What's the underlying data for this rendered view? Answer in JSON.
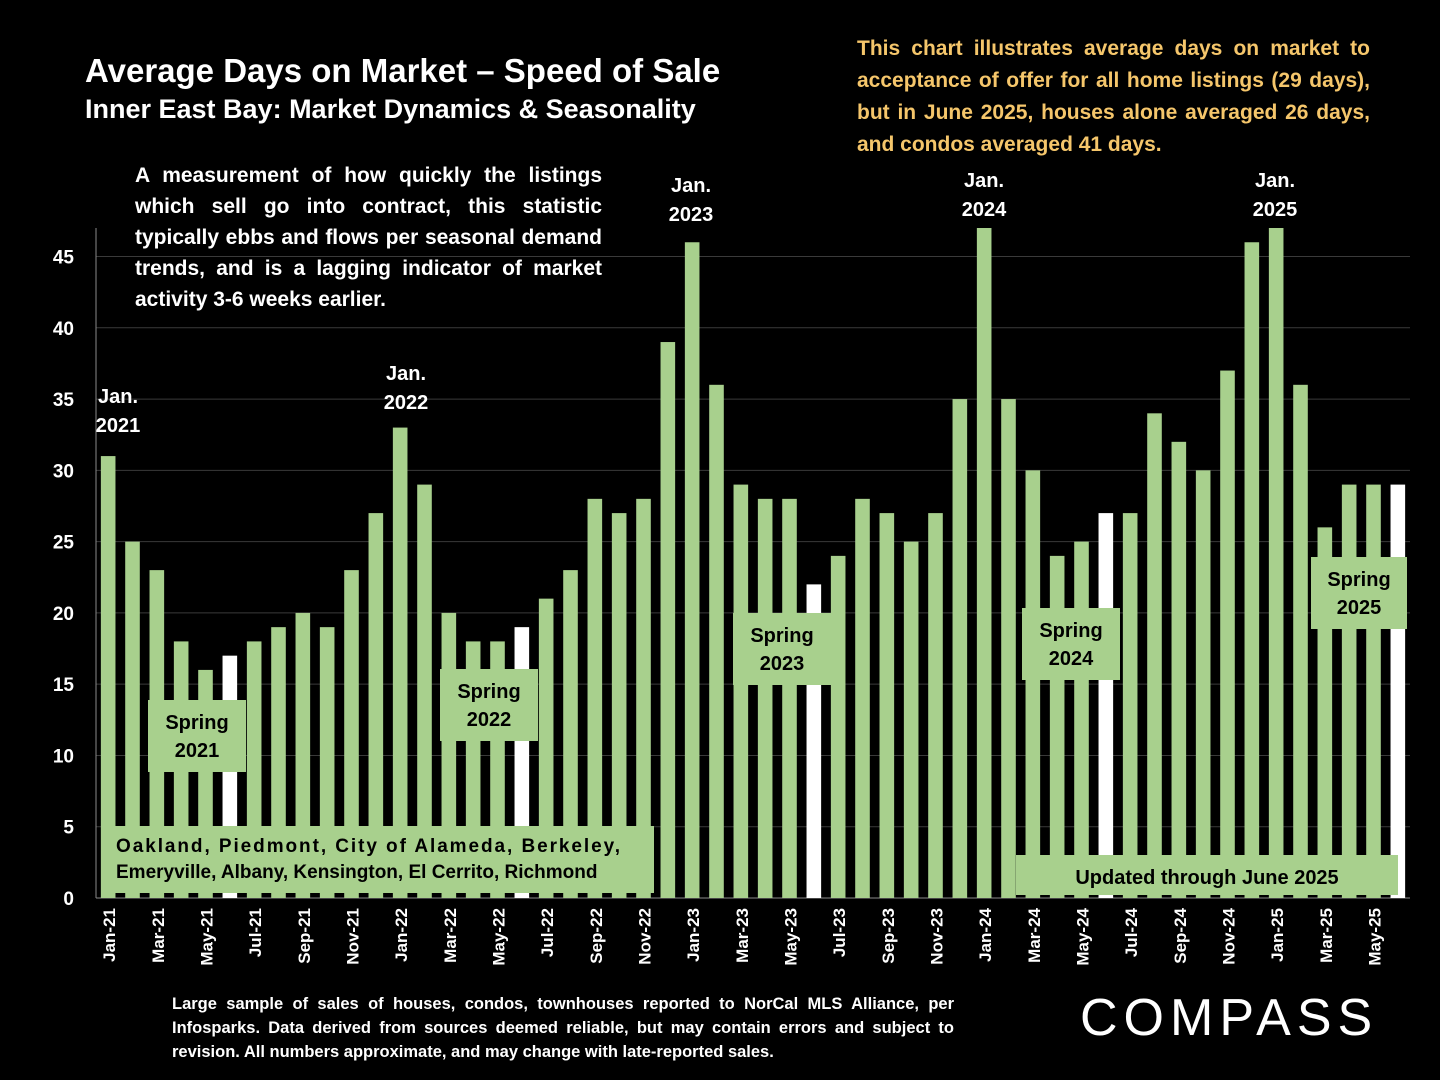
{
  "header": {
    "title": "Average Days on Market – Speed of Sale",
    "subtitle": "Inner East Bay: Market Dynamics & Seasonality"
  },
  "note": "This chart illustrates average days on market to acceptance of offer for all home listings (29 days), but in June 2025, houses alone averaged 26 days, and condos averaged 41 days.",
  "description": "A measurement of how quickly the listings which sell go into contract, this statistic typically ebbs and flows per seasonal demand trends, and is a lagging indicator of market activity 3-6 weeks earlier.",
  "footnote": "Large sample of sales of houses, condos, townhouses reported to NorCal MLS Alliance, per Infosparks. Data derived from sources deemed reliable, but may contain errors and subject to revision. All numbers approximate, and may change with late-reported sales.",
  "brand": "COMPASS",
  "colors": {
    "background": "#000000",
    "bar": "#A8D08D",
    "highlight_bar": "#FFFFFF",
    "note_text": "#F5C66B",
    "label_box": "#A8D08D",
    "text": "#FFFFFF",
    "dark_text": "#000000"
  },
  "chart_data": {
    "type": "bar",
    "categories": [
      "Jan-21",
      "Feb-21",
      "Mar-21",
      "Apr-21",
      "May-21",
      "Jun-21",
      "Jul-21",
      "Aug-21",
      "Sep-21",
      "Oct-21",
      "Nov-21",
      "Dec-21",
      "Jan-22",
      "Feb-22",
      "Mar-22",
      "Apr-22",
      "May-22",
      "Jun-22",
      "Jul-22",
      "Aug-22",
      "Sep-22",
      "Oct-22",
      "Nov-22",
      "Dec-22",
      "Jan-23",
      "Feb-23",
      "Mar-23",
      "Apr-23",
      "May-23",
      "Jun-23",
      "Jul-23",
      "Aug-23",
      "Sep-23",
      "Oct-23",
      "Nov-23",
      "Dec-23",
      "Jan-24",
      "Feb-24",
      "Mar-24",
      "Apr-24",
      "May-24",
      "Jun-24",
      "Jul-24",
      "Aug-24",
      "Sep-24",
      "Oct-24",
      "Nov-24",
      "Dec-24",
      "Jan-25",
      "Feb-25",
      "Mar-25",
      "Apr-25",
      "May-25",
      "Jun-25"
    ],
    "tick_labels": [
      "Jan-21",
      "Mar-21",
      "May-21",
      "Jul-21",
      "Sep-21",
      "Nov-21",
      "Jan-22",
      "Mar-22",
      "May-22",
      "Jul-22",
      "Sep-22",
      "Nov-22",
      "Jan-23",
      "Mar-23",
      "May-23",
      "Jul-23",
      "Sep-23",
      "Nov-23",
      "Jan-24",
      "Mar-24",
      "May-24",
      "Jul-24",
      "Sep-24",
      "Nov-24",
      "Jan-25",
      "Mar-25",
      "May-25"
    ],
    "values": [
      31,
      25,
      23,
      18,
      16,
      17,
      18,
      19,
      20,
      19,
      23,
      27,
      33,
      29,
      20,
      18,
      18,
      19,
      21,
      23,
      28,
      27,
      28,
      39,
      46,
      36,
      29,
      28,
      28,
      22,
      24,
      28,
      27,
      25,
      27,
      35,
      49,
      35,
      30,
      24,
      25,
      27,
      27,
      34,
      32,
      30,
      37,
      46,
      48,
      36,
      26,
      29,
      29,
      29
    ],
    "highlighted": [
      "Jun-21",
      "Jun-22",
      "Jun-23",
      "Jun-24",
      "Jun-25"
    ],
    "ylim": [
      0,
      47
    ],
    "yticks": [
      0,
      5,
      10,
      15,
      20,
      25,
      30,
      35,
      40,
      45
    ],
    "grid": true,
    "xlabel": "",
    "ylabel": "",
    "year_labels": [
      {
        "category": "Jan-21",
        "line1": "Jan.",
        "line2": "2021"
      },
      {
        "category": "Jan-22",
        "line1": "Jan.",
        "line2": "2022"
      },
      {
        "category": "Jan-23",
        "line1": "Jan.",
        "line2": "2023"
      },
      {
        "category": "Jan-24",
        "line1": "Jan.",
        "line2": "2024"
      },
      {
        "category": "Jan-25",
        "line1": "Jan.",
        "line2": "2025"
      }
    ],
    "spring_labels": [
      {
        "category": "Apr-21",
        "line1": "Spring",
        "line2": "2021"
      },
      {
        "category": "Apr-22",
        "line1": "Spring",
        "line2": "2022"
      },
      {
        "category": "Apr-23",
        "line1": "Spring",
        "line2": "2023"
      },
      {
        "category": "Apr-24",
        "line1": "Spring",
        "line2": "2024"
      },
      {
        "category": "May-25",
        "line1": "Spring",
        "line2": "2025"
      }
    ],
    "region_box": {
      "line1": "Oakland, Piedmont, City of Alameda, Berkeley,",
      "line2": "Emeryville, Albany, Kensington, El Cerrito, Richmond"
    },
    "updated_box": "Updated through June 2025"
  }
}
